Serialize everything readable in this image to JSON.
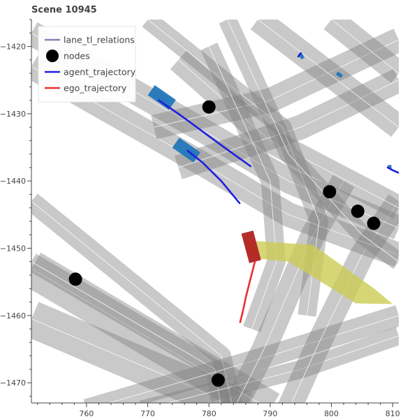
{
  "chart_data": {
    "type": "scatter",
    "title": "Scene 10945",
    "xlim": [
      751,
      811
    ],
    "ylim": [
      -1473,
      -1416
    ],
    "x_ticks": [
      760,
      770,
      780,
      790,
      800,
      810
    ],
    "y_ticks": [
      -1420,
      -1430,
      -1440,
      -1450,
      -1460,
      -1470
    ],
    "legend": {
      "placement": "top-left",
      "entries": [
        {
          "label": "lane_tl_relations",
          "marker": "line",
          "color": "#8c7fb8"
        },
        {
          "label": "nodes",
          "marker": "circle",
          "color": "#000000"
        },
        {
          "label": "agent_trajectory",
          "marker": "line",
          "color": "#1f1fe0"
        },
        {
          "label": "ego_trajectory",
          "marker": "line",
          "color": "#e83030"
        }
      ]
    },
    "colors": {
      "lane": "#7f7f7f",
      "lane_centerline": "#ffffff",
      "crosswalk": "#cccc55",
      "agent_box": "#2277bb",
      "ego_box": "#b22222",
      "agent_trajectory": "#1f1fe0",
      "ego_trajectory": "#e83030",
      "node": "#000000"
    },
    "lanes": [
      {
        "points": [
          [
            751,
            -1460.5
          ],
          [
            786,
            -1474
          ]
        ],
        "width": 6
      },
      {
        "points": [
          [
            751,
            -1453
          ],
          [
            790,
            -1474
          ]
        ],
        "width": 6
      },
      {
        "points": [
          [
            751,
            -1443
          ],
          [
            782,
            -1466
          ],
          [
            784,
            -1474
          ]
        ],
        "width": 3.2
      },
      {
        "points": [
          [
            751,
            -1452
          ],
          [
            781,
            -1468
          ],
          [
            782,
            -1474
          ]
        ],
        "width": 3
      },
      {
        "points": [
          [
            760,
            -1474
          ],
          [
            790,
            -1466
          ],
          [
            811,
            -1460
          ]
        ],
        "width": 3.5
      },
      {
        "points": [
          [
            769,
            -1474
          ],
          [
            795,
            -1468
          ],
          [
            811,
            -1463
          ]
        ],
        "width": 3
      },
      {
        "points": [
          [
            784,
            -1474
          ],
          [
            789,
            -1465
          ],
          [
            797,
            -1448
          ],
          [
            802,
            -1440
          ]
        ],
        "width": 4
      },
      {
        "points": [
          [
            793,
            -1474
          ],
          [
            798,
            -1464
          ],
          [
            805,
            -1451
          ],
          [
            811,
            -1443
          ]
        ],
        "width": 4
      },
      {
        "points": [
          [
            751,
            -1418
          ],
          [
            780,
            -1433
          ],
          [
            793,
            -1440
          ],
          [
            811,
            -1447
          ]
        ],
        "width": 4
      },
      {
        "points": [
          [
            751,
            -1423
          ],
          [
            780,
            -1438
          ],
          [
            793,
            -1445
          ],
          [
            811,
            -1451
          ]
        ],
        "width": 4
      },
      {
        "points": [
          [
            775,
            -1422
          ],
          [
            790,
            -1434
          ],
          [
            811,
            -1444
          ]
        ],
        "width": 4
      },
      {
        "points": [
          [
            771,
            -1432
          ],
          [
            790,
            -1428
          ],
          [
            811,
            -1419
          ]
        ],
        "width": 4
      },
      {
        "points": [
          [
            775,
            -1438
          ],
          [
            795,
            -1432
          ],
          [
            811,
            -1425
          ]
        ],
        "width": 4
      },
      {
        "points": [
          [
            788,
            -1416
          ],
          [
            811,
            -1432
          ]
        ],
        "width": 4
      },
      {
        "points": [
          [
            800,
            -1416
          ],
          [
            811,
            -1424
          ]
        ],
        "width": 4
      },
      {
        "points": [
          [
            770,
            -1416
          ],
          [
            792,
            -1432
          ],
          [
            798,
            -1446
          ],
          [
            796,
            -1460
          ]
        ],
        "width": 3
      },
      {
        "points": [
          [
            783,
            -1416
          ],
          [
            793,
            -1436
          ],
          [
            805,
            -1448
          ],
          [
            811,
            -1452
          ]
        ],
        "width": 3
      },
      {
        "points": [
          [
            780,
            -1420
          ],
          [
            790,
            -1440
          ],
          [
            791,
            -1452
          ],
          [
            787,
            -1462
          ]
        ],
        "width": 3
      }
    ],
    "crosswalk_polygon": [
      [
        785.6,
        -1448.8
      ],
      [
        797,
        -1449.5
      ],
      [
        807,
        -1456
      ],
      [
        810,
        -1458.3
      ],
      [
        804,
        -1458.2
      ],
      [
        793,
        -1452
      ],
      [
        786.5,
        -1451.4
      ]
    ],
    "agents": [
      {
        "x": 772.3,
        "y": -1427.6,
        "length": 4.2,
        "width": 2.0,
        "heading_deg": -35
      },
      {
        "x": 776.3,
        "y": -1435.4,
        "length": 4.2,
        "width": 2.0,
        "heading_deg": -35
      },
      {
        "x": 795.1,
        "y": -1421.4,
        "length": 1.0,
        "width": 0.6,
        "heading_deg": -60
      },
      {
        "x": 801.3,
        "y": -1424.2,
        "length": 1.0,
        "width": 0.6,
        "heading_deg": -35
      },
      {
        "x": 809.5,
        "y": -1437.9,
        "length": 0.6,
        "width": 0.6,
        "heading_deg": 0
      }
    ],
    "ego": {
      "x": 786.9,
      "y": -1449.8,
      "length": 5.0,
      "width": 2.0,
      "heading_deg": -75
    },
    "agent_trajectories": [
      [
        [
          771.8,
          -1428
        ],
        [
          775,
          -1430
        ],
        [
          778,
          -1432
        ],
        [
          781,
          -1434
        ],
        [
          784,
          -1436
        ],
        [
          786.8,
          -1437.8
        ]
      ],
      [
        [
          776.5,
          -1435.5
        ],
        [
          779,
          -1437.3
        ],
        [
          782,
          -1440
        ],
        [
          785,
          -1443.3
        ]
      ],
      [
        [
          795,
          -1421
        ],
        [
          794.6,
          -1421.5
        ]
      ],
      [
        [
          809.2,
          -1438
        ],
        [
          810,
          -1438.4
        ],
        [
          811,
          -1438.8
        ]
      ]
    ],
    "ego_trajectory": [
      [
        787.5,
        -1452
      ],
      [
        786.8,
        -1454.5
      ],
      [
        786.1,
        -1457
      ],
      [
        785.5,
        -1459.5
      ],
      [
        785.1,
        -1461
      ]
    ],
    "nodes": [
      [
        780,
        -1429
      ],
      [
        758.2,
        -1454.6
      ],
      [
        799.7,
        -1441.6
      ],
      [
        804.3,
        -1444.5
      ],
      [
        806.9,
        -1446.3
      ],
      [
        781.5,
        -1469.6
      ]
    ]
  }
}
